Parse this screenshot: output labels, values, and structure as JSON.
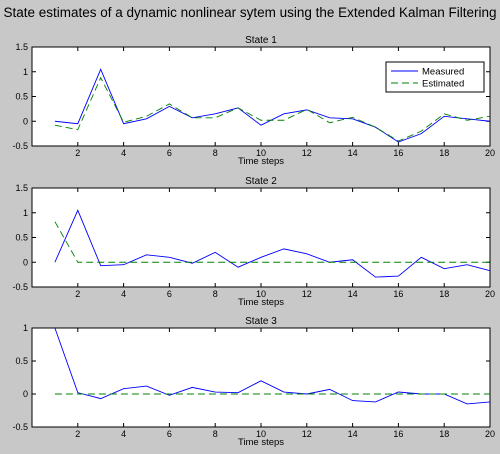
{
  "title": "State estimates of a dynamic nonlinear sytem using the Extended Kalman Filtering",
  "colors": {
    "figure_bg": "#c8c8c8",
    "axes_bg": "#ffffff",
    "measured": "#0000ff",
    "estimated": "#008000"
  },
  "chart_data": [
    {
      "type": "line",
      "title": "State 1",
      "xlabel": "Time steps",
      "ylabel": "",
      "xlim": [
        0,
        20
      ],
      "ylim": [
        -0.5,
        1.5
      ],
      "xticks": [
        2,
        4,
        6,
        8,
        10,
        12,
        14,
        16,
        18,
        20
      ],
      "yticks": [
        -0.5,
        0,
        0.5,
        1,
        1.5
      ],
      "ytick_labels": [
        "-0.5",
        "0",
        "0.5",
        "1",
        "1.5"
      ],
      "legend": {
        "position": "top-right",
        "entries": [
          "Measured",
          "Estimated"
        ]
      },
      "x": [
        1,
        2,
        3,
        4,
        5,
        6,
        7,
        8,
        9,
        10,
        11,
        12,
        13,
        14,
        15,
        16,
        17,
        18,
        19,
        20
      ],
      "series": [
        {
          "name": "Measured",
          "style": "solid",
          "color": "#0000ff",
          "values": [
            0.0,
            -0.05,
            1.05,
            -0.05,
            0.05,
            0.3,
            0.07,
            0.15,
            0.27,
            -0.08,
            0.15,
            0.23,
            0.07,
            0.05,
            -0.12,
            -0.42,
            -0.25,
            0.1,
            0.05,
            0.0
          ]
        },
        {
          "name": "Estimated",
          "style": "dashed",
          "color": "#008000",
          "values": [
            -0.08,
            -0.17,
            0.88,
            -0.02,
            0.1,
            0.35,
            0.07,
            0.07,
            0.27,
            0.02,
            0.02,
            0.24,
            -0.03,
            0.08,
            -0.12,
            -0.4,
            -0.2,
            0.15,
            0.02,
            0.1
          ]
        }
      ]
    },
    {
      "type": "line",
      "title": "State 2",
      "xlabel": "Time steps",
      "ylabel": "",
      "xlim": [
        0,
        20
      ],
      "ylim": [
        -0.5,
        1.5
      ],
      "xticks": [
        2,
        4,
        6,
        8,
        10,
        12,
        14,
        16,
        18,
        20
      ],
      "yticks": [
        -0.5,
        0,
        0.5,
        1,
        1.5
      ],
      "ytick_labels": [
        "-0.5",
        "0",
        "0.5",
        "1",
        "1.5"
      ],
      "x": [
        1,
        2,
        3,
        4,
        5,
        6,
        7,
        8,
        9,
        10,
        11,
        12,
        13,
        14,
        15,
        16,
        17,
        18,
        19,
        20
      ],
      "series": [
        {
          "name": "Measured",
          "style": "solid",
          "color": "#0000ff",
          "values": [
            0.0,
            1.05,
            -0.07,
            -0.05,
            0.15,
            0.1,
            -0.02,
            0.2,
            -0.1,
            0.1,
            0.27,
            0.17,
            0.0,
            0.05,
            -0.3,
            -0.28,
            0.1,
            -0.13,
            -0.05,
            -0.17
          ]
        },
        {
          "name": "Estimated",
          "style": "dashed",
          "color": "#008000",
          "values": [
            0.82,
            0.0,
            0.0,
            0.0,
            0.0,
            0.0,
            0.0,
            0.0,
            0.0,
            0.0,
            0.0,
            0.0,
            0.0,
            0.0,
            0.0,
            0.0,
            0.0,
            0.0,
            0.0,
            0.0
          ]
        }
      ]
    },
    {
      "type": "line",
      "title": "State 3",
      "xlabel": "Time steps",
      "ylabel": "",
      "xlim": [
        0,
        20
      ],
      "ylim": [
        -0.5,
        1
      ],
      "xticks": [
        2,
        4,
        6,
        8,
        10,
        12,
        14,
        16,
        18,
        20
      ],
      "yticks": [
        -0.5,
        0,
        0.5,
        1
      ],
      "ytick_labels": [
        "-0.5",
        "0",
        "0.5",
        "1"
      ],
      "x": [
        1,
        2,
        3,
        4,
        5,
        6,
        7,
        8,
        9,
        10,
        11,
        12,
        13,
        14,
        15,
        16,
        17,
        18,
        19,
        20
      ],
      "series": [
        {
          "name": "Measured",
          "style": "solid",
          "color": "#0000ff",
          "values": [
            1.0,
            0.02,
            -0.07,
            0.08,
            0.12,
            -0.02,
            0.1,
            0.03,
            0.02,
            0.2,
            0.03,
            0.0,
            0.07,
            -0.1,
            -0.12,
            0.03,
            0.0,
            0.0,
            -0.15,
            -0.12
          ]
        },
        {
          "name": "Estimated",
          "style": "dashed",
          "color": "#008000",
          "values": [
            0.0,
            0.0,
            0.0,
            0.0,
            0.0,
            0.0,
            0.0,
            0.0,
            0.0,
            0.0,
            0.0,
            0.0,
            0.0,
            0.0,
            0.0,
            0.0,
            0.0,
            0.0,
            0.0,
            0.0
          ]
        }
      ]
    }
  ]
}
